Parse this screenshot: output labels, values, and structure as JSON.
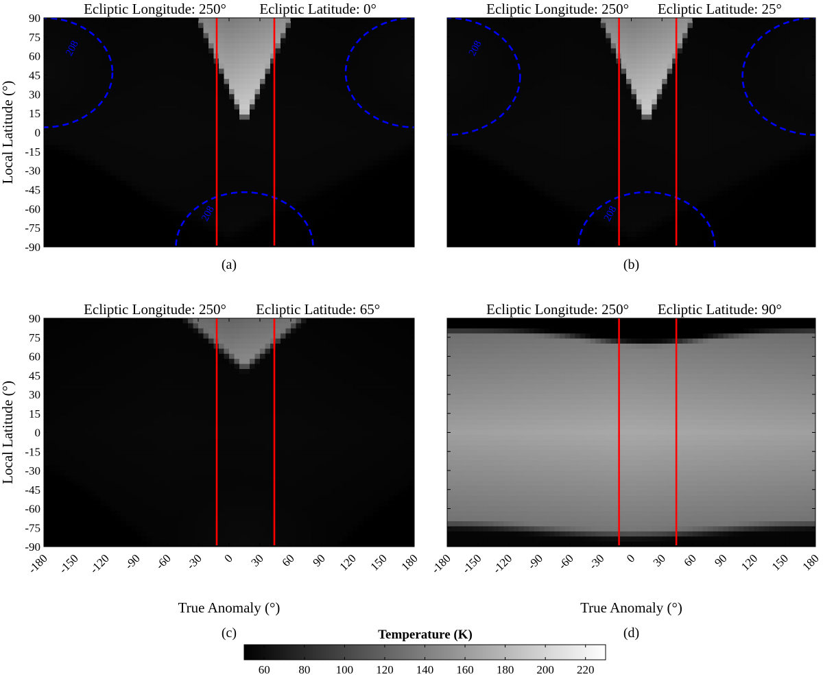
{
  "chart_data": {
    "type": "heatmap",
    "panels": [
      {
        "id": "a",
        "title_left": "Ecliptic Longitude: 250°",
        "title_right": "Ecliptic Latitude: 0°",
        "caption": "(a)",
        "ecliptic_latitude": 0,
        "contour_label": "208",
        "contours": [
          {
            "center": [
              -180,
              47
            ],
            "radius": 43
          },
          {
            "center": [
              180,
              47
            ],
            "radius": 43
          },
          {
            "center": [
              15,
              -90
            ],
            "radius": 43
          }
        ]
      },
      {
        "id": "b",
        "title_left": "Ecliptic Longitude: 250°",
        "title_right": "Ecliptic Latitude: 25°",
        "caption": "(b)",
        "ecliptic_latitude": 25,
        "contour_label": "208",
        "contours": [
          {
            "center": [
              -180,
              44
            ],
            "radius": 46
          },
          {
            "center": [
              180,
              44
            ],
            "radius": 46
          },
          {
            "center": [
              15,
              -90
            ],
            "radius": 43
          }
        ]
      },
      {
        "id": "c",
        "title_left": "Ecliptic Longitude: 250°",
        "title_right": "Ecliptic Latitude: 65°",
        "caption": "(c)",
        "ecliptic_latitude": 65,
        "contours": []
      },
      {
        "id": "d",
        "title_left": "Ecliptic Longitude: 250°",
        "title_right": "Ecliptic Latitude: 90°",
        "caption": "(d)",
        "ecliptic_latitude": 90,
        "contours": []
      }
    ],
    "xlabel": "True Anomaly (°)",
    "ylabel": "Local Latitude (°)",
    "xlim": [
      -180,
      180
    ],
    "ylim": [
      -90,
      90
    ],
    "xticks": [
      -180,
      -150,
      -120,
      -90,
      -60,
      -30,
      0,
      30,
      60,
      90,
      120,
      150,
      180
    ],
    "yticks": [
      90,
      75,
      60,
      45,
      30,
      15,
      0,
      -15,
      -30,
      -45,
      -60,
      -75,
      -90
    ],
    "vertical_lines_x": [
      -12,
      44
    ],
    "colorbar": {
      "title": "Temperature (K)",
      "range": [
        50,
        230
      ],
      "ticks": [
        60,
        80,
        100,
        120,
        140,
        160,
        180,
        200,
        220
      ],
      "colormap": "gray"
    },
    "colors": {
      "marker_lines": "#ff0000",
      "contour": "#0000ff"
    }
  }
}
